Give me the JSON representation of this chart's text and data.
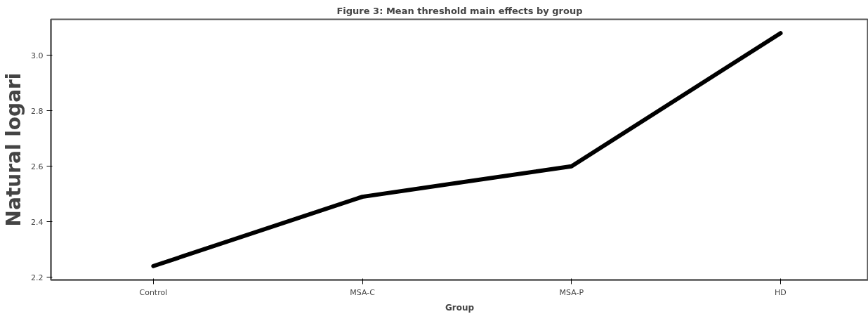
{
  "chart_data": {
    "type": "line",
    "title": "Figure 3: Mean threshold main effects by group",
    "xlabel": "Group",
    "ylabel": "Natural logari",
    "categories": [
      "Control",
      "MSA-C",
      "MSA-P",
      "HD"
    ],
    "series": [
      {
        "color": "#000000",
        "values": [
          2.24,
          2.49,
          2.6,
          3.08
        ]
      }
    ],
    "ylim": [
      2.19,
      3.13
    ],
    "yticks": [
      {
        "value": 2.2,
        "label": "2.2"
      },
      {
        "value": 2.4,
        "label": "2.4"
      },
      {
        "value": 2.6,
        "label": "2.6"
      },
      {
        "value": 2.8,
        "label": "2.8"
      },
      {
        "value": 3.0,
        "label": "3.0"
      }
    ],
    "grid": false,
    "marker": "none",
    "line_style": "solid"
  }
}
